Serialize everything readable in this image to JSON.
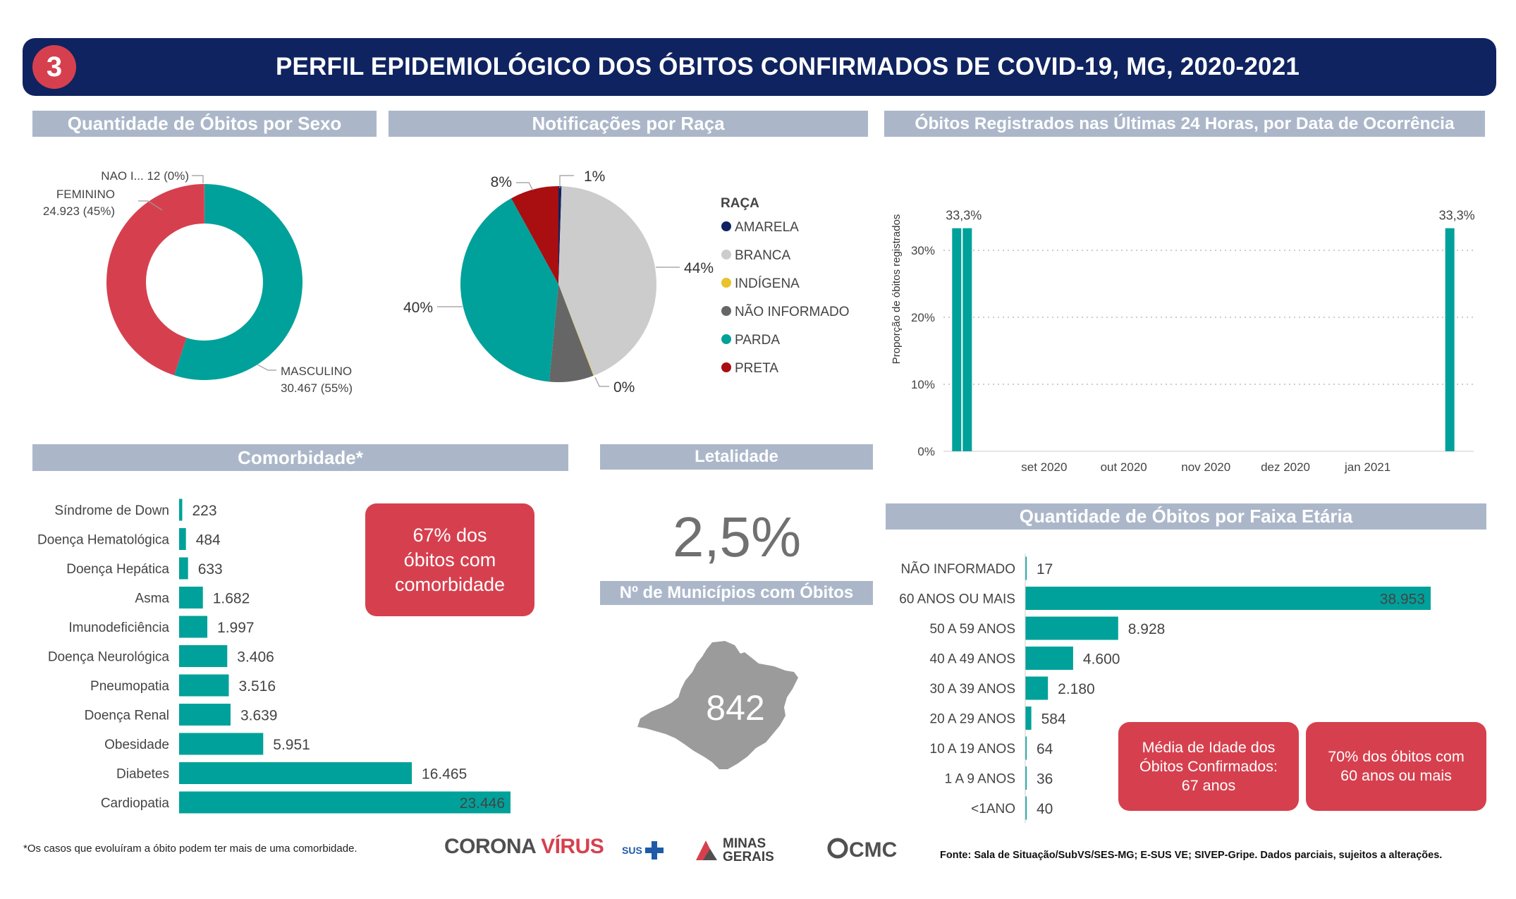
{
  "header": {
    "number": "3",
    "title": "PERFIL EPIDEMIOLÓGICO DOS ÓBITOS CONFIRMADOS DE COVID-19, MG, 2020-2021"
  },
  "sections": {
    "sexo": "Quantidade de Óbitos por Sexo",
    "raca": "Notificações por Raça",
    "ultimas24h": "Óbitos Registrados nas Últimas 24 Horas, por Data de Ocorrência",
    "comorbidade": "Comorbidade*",
    "letalidade": "Letalidade",
    "municipios": "Nº de Municípios com Óbitos",
    "faixa": "Quantidade de Óbitos por Faixa Etária"
  },
  "colors": {
    "teal": "#00a19a",
    "red": "#d6404e",
    "navy": "#0f2360",
    "section": "#abb7c9",
    "gray": "#707070"
  },
  "letalidade_value": "2,5%",
  "municipios_value": "842",
  "callouts": {
    "comorbidade": "67% dos\nóbitos com\ncomorbidade",
    "media_idade": "Média de Idade dos\nÓbitos Confirmados:\n67 anos",
    "sessenta": "70% dos óbitos com\n60 anos ou mais"
  },
  "footnote": "*Os casos que evoluíram a óbito podem ter mais de uma comorbidade.",
  "source": "Fonte: Sala de Situação/SubVS/SES-MG; E-SUS VE; SIVEP-Gripe. Dados parciais, sujeitos a alterações.",
  "logos": {
    "corona_a": "CORONA",
    "corona_b": "VÍRUS",
    "sus": "SUS",
    "minas_a": "MINAS",
    "minas_b": "GERAIS",
    "cmc": "CMC"
  },
  "chart_data": [
    {
      "id": "sexo",
      "type": "pie",
      "title": "Quantidade de Óbitos por Sexo",
      "donut": true,
      "slices": [
        {
          "name": "MASCULINO",
          "label": "MASCULINO",
          "value_text": "30.467 (55%)",
          "value": 30467,
          "color": "#00a19a"
        },
        {
          "name": "FEMININO",
          "label": "FEMININO",
          "value_text": "24.923 (45%)",
          "value": 24923,
          "color": "#d6404e"
        },
        {
          "name": "NAO I...",
          "label": "NAO I... 12 (0%)",
          "value_text": "",
          "value": 12,
          "color": "#888888"
        }
      ]
    },
    {
      "id": "raca",
      "type": "pie",
      "title": "Notificações por Raça",
      "legend_title": "RAÇA",
      "legend_position": "right",
      "slices": [
        {
          "name": "AMARELA",
          "pct": 0.5,
          "label": "1%",
          "color": "#0f2360"
        },
        {
          "name": "BRANCA",
          "pct": 43.6,
          "label": "44%",
          "color": "#cccccc"
        },
        {
          "name": "INDÍGENA",
          "pct": 0.1,
          "label": "0%",
          "color": "#e8c32c"
        },
        {
          "name": "NÃO INFORMADO",
          "pct": 7.3,
          "label": "",
          "color": "#666666"
        },
        {
          "name": "PARDA",
          "pct": 40.5,
          "label": "40%",
          "color": "#00a19a"
        },
        {
          "name": "PRETA",
          "pct": 8.0,
          "label": "8%",
          "color": "#a90e11"
        }
      ]
    },
    {
      "id": "ultimas24h",
      "type": "bar",
      "title": "Óbitos Registrados nas Últimas 24 Horas, por Data de Ocorrência",
      "ylabel": "Proporção de óbitos registrados",
      "y_ticks": [
        "0%",
        "10%",
        "20%",
        "30%"
      ],
      "ylim": [
        0,
        0.4
      ],
      "x_ticks": [
        "set 2020",
        "out 2020",
        "nov 2020",
        "dez 2020",
        "jan 2021"
      ],
      "x_tick_dates": [
        "2020-09-01",
        "2020-10-01",
        "2020-11-01",
        "2020-12-01",
        "2021-01-01"
      ],
      "xlim": [
        "2020-07-25",
        "2021-02-10"
      ],
      "bars": [
        {
          "date": "2020-07-30",
          "value": 0.333,
          "label": "33,3%"
        },
        {
          "date": "2020-08-03",
          "value": 0.333,
          "label": ""
        },
        {
          "date": "2021-02-01",
          "value": 0.333,
          "label": "33,3%"
        }
      ],
      "grid": true,
      "color": "#00a19a"
    },
    {
      "id": "comorbidade",
      "type": "bar",
      "orientation": "horizontal",
      "title": "Comorbidade*",
      "categories": [
        "Síndrome de Down",
        "Doença Hematológica",
        "Doença Hepática",
        "Asma",
        "Imunodeficiência",
        "Doença Neurológica",
        "Pneumopatia",
        "Doença Renal",
        "Obesidade",
        "Diabetes",
        "Cardiopatia"
      ],
      "values": [
        223,
        484,
        633,
        1682,
        1997,
        3406,
        3516,
        3639,
        5951,
        16465,
        23446
      ],
      "value_labels": [
        "223",
        "484",
        "633",
        "1.682",
        "1.997",
        "3.406",
        "3.516",
        "3.639",
        "5.951",
        "16.465",
        "23.446"
      ],
      "color": "#00a19a"
    },
    {
      "id": "faixa",
      "type": "bar",
      "orientation": "horizontal",
      "title": "Quantidade de Óbitos por Faixa Etária",
      "categories": [
        "NÃO INFORMADO",
        "60 ANOS OU MAIS",
        "50 A 59 ANOS",
        "40 A 49 ANOS",
        "30 A 39 ANOS",
        "20 A 29 ANOS",
        "10 A 19 ANOS",
        "1 A 9 ANOS",
        "<1ANO"
      ],
      "values": [
        17,
        38953,
        8928,
        4600,
        2180,
        584,
        64,
        36,
        40
      ],
      "value_labels": [
        "17",
        "38.953",
        "8.928",
        "4.600",
        "2.180",
        "584",
        "64",
        "36",
        "40"
      ],
      "color": "#00a19a"
    }
  ]
}
